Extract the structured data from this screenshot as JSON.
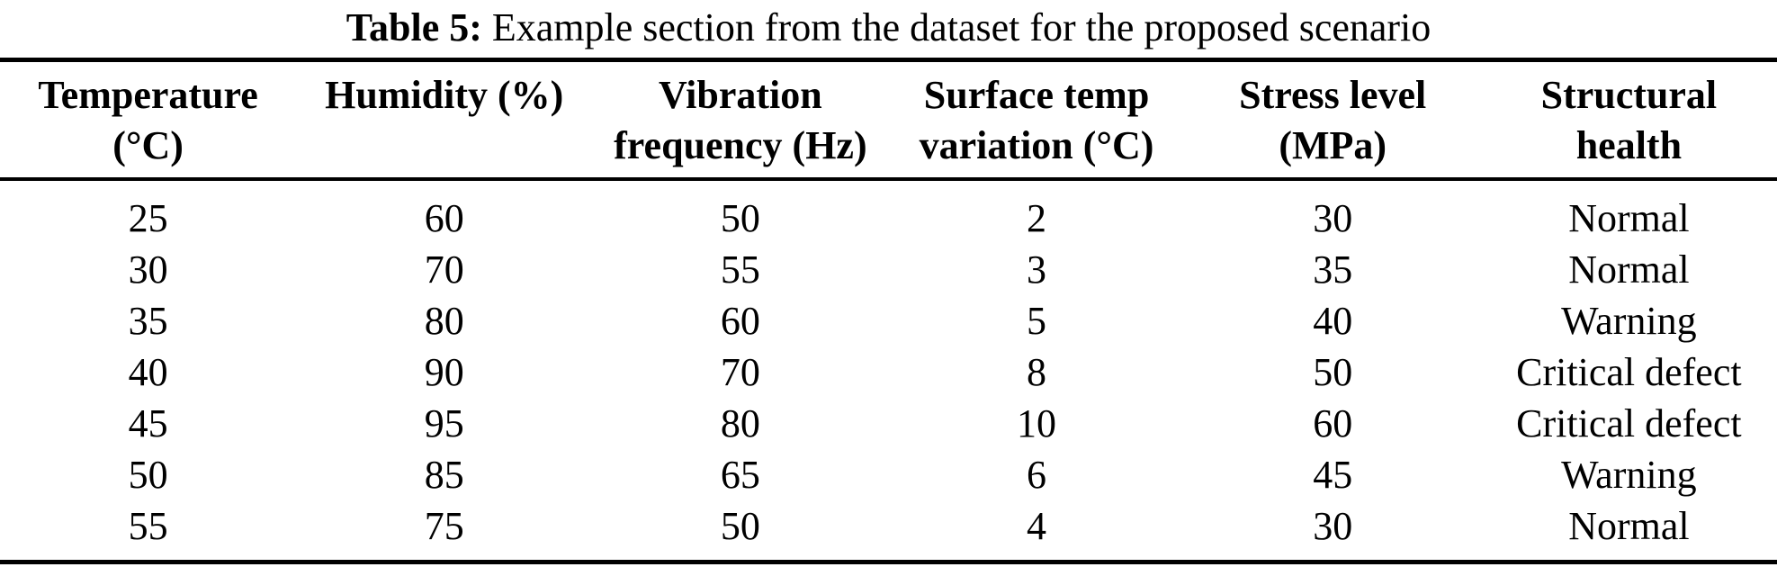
{
  "caption": {
    "label": "Table 5:",
    "text": " Example section from the dataset for the proposed scenario"
  },
  "table": {
    "columns": [
      {
        "line1": "Temperature",
        "line2": "(°C)"
      },
      {
        "line1": "Humidity (%)",
        "line2": ""
      },
      {
        "line1": "Vibration",
        "line2": "frequency (Hz)"
      },
      {
        "line1": "Surface temp",
        "line2": "variation (°C)"
      },
      {
        "line1": "Stress level",
        "line2": "(MPa)"
      },
      {
        "line1": "Structural",
        "line2": "health"
      }
    ],
    "rows": [
      {
        "cells": [
          "25",
          "60",
          "50",
          "2",
          "30",
          "Normal"
        ]
      },
      {
        "cells": [
          "30",
          "70",
          "55",
          "3",
          "35",
          "Normal"
        ]
      },
      {
        "cells": [
          "35",
          "80",
          "60",
          "5",
          "40",
          "Warning"
        ]
      },
      {
        "cells": [
          "40",
          "90",
          "70",
          "8",
          "50",
          "Critical defect"
        ]
      },
      {
        "cells": [
          "45",
          "95",
          "80",
          "10",
          "60",
          "Critical defect"
        ]
      },
      {
        "cells": [
          "50",
          "85",
          "65",
          "6",
          "45",
          "Warning"
        ]
      },
      {
        "cells": [
          "55",
          "75",
          "50",
          "4",
          "30",
          "Normal"
        ]
      }
    ]
  },
  "chart_data": {
    "type": "table",
    "title": "Table 5: Example section from the dataset for the proposed scenario",
    "columns": [
      "Temperature (°C)",
      "Humidity (%)",
      "Vibration frequency (Hz)",
      "Surface temp variation (°C)",
      "Stress level (MPa)",
      "Structural health"
    ],
    "rows": [
      [
        25,
        60,
        50,
        2,
        30,
        "Normal"
      ],
      [
        30,
        70,
        55,
        3,
        35,
        "Normal"
      ],
      [
        35,
        80,
        60,
        5,
        40,
        "Warning"
      ],
      [
        40,
        90,
        70,
        8,
        50,
        "Critical defect"
      ],
      [
        45,
        95,
        80,
        10,
        60,
        "Critical defect"
      ],
      [
        50,
        85,
        65,
        6,
        45,
        "Warning"
      ],
      [
        55,
        75,
        50,
        4,
        30,
        "Normal"
      ]
    ]
  },
  "colors": {
    "text": "#000000",
    "rule": "#000000",
    "background": "#ffffff"
  }
}
